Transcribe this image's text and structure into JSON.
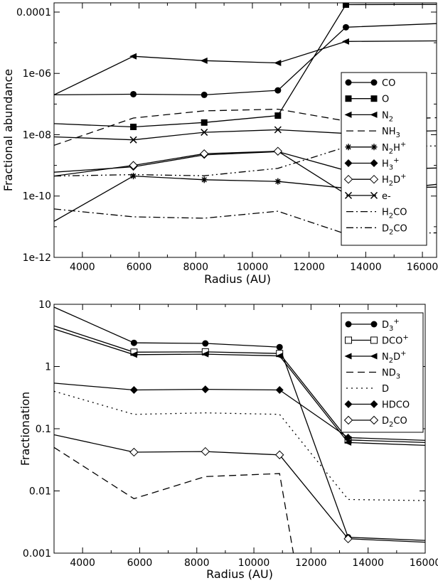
{
  "chart_data": [
    {
      "type": "line",
      "xlabel": "Radius (AU)",
      "ylabel": "Fractional abundance",
      "xlim": [
        3000,
        16500
      ],
      "ylim": [
        1e-12,
        0.0002
      ],
      "yscale": "log",
      "xticks": [
        4000,
        6000,
        8000,
        10000,
        12000,
        14000,
        16000
      ],
      "yticks": [
        {
          "value": 1e-12,
          "label": "1e-12"
        },
        {
          "value": 1e-10,
          "label": "1e-10"
        },
        {
          "value": 1e-08,
          "label": "1e-08"
        },
        {
          "value": 1e-06,
          "label": "1e-06"
        },
        {
          "value": 0.0001,
          "label": "0.0001"
        }
      ],
      "legend": "right",
      "series": [
        {
          "name": "CO",
          "marker": "circle",
          "dash": "",
          "x": [
            3000,
            5800,
            8300,
            10900,
            13300,
            16500
          ],
          "y": [
            2e-07,
            2.1e-07,
            2e-07,
            2.8e-07,
            3.2e-05,
            4.2e-05
          ]
        },
        {
          "name": "O",
          "marker": "square",
          "dash": "",
          "x": [
            3000,
            5800,
            8300,
            10900,
            13300,
            16500
          ],
          "y": [
            2.3e-08,
            1.8e-08,
            2.5e-08,
            4.2e-08,
            0.000175,
            0.000178
          ]
        },
        {
          "name": "N2",
          "marker": "triangle-left",
          "dash": "",
          "x": [
            3000,
            5800,
            8300,
            10900,
            13300,
            16500
          ],
          "y": [
            2e-07,
            3.6e-06,
            2.6e-06,
            2.2e-06,
            1.1e-05,
            1.15e-05
          ]
        },
        {
          "name": "NH3",
          "marker": "none",
          "dash": "10,6",
          "x": [
            3000,
            5800,
            8300,
            10900,
            13300,
            16500
          ],
          "y": [
            4.5e-09,
            3.5e-08,
            6e-08,
            6.8e-08,
            2.8e-08,
            3.6e-08
          ]
        },
        {
          "name": "N2H+",
          "marker": "star",
          "dash": "",
          "x": [
            3000,
            5800,
            8300,
            10900,
            13300,
            16500
          ],
          "y": [
            1.5e-11,
            4.5e-10,
            3.4e-10,
            3e-10,
            1.8e-10,
            1.95e-10
          ]
        },
        {
          "name": "H3+",
          "marker": "diamond",
          "dash": "",
          "x": [
            3000,
            5800,
            8300,
            10900,
            13300,
            16500
          ],
          "y": [
            6e-10,
            9e-10,
            2.2e-09,
            2.8e-09,
            6.8e-10,
            8.2e-10
          ]
        },
        {
          "name": "H2D+",
          "marker": "diamond-open",
          "dash": "",
          "x": [
            3000,
            5800,
            8300,
            10900,
            13300,
            16500
          ],
          "y": [
            4.5e-10,
            1e-09,
            2.4e-09,
            2.9e-09,
            1.15e-10,
            2.4e-10
          ]
        },
        {
          "name": "e-",
          "marker": "x",
          "dash": "",
          "x": [
            3000,
            5800,
            8300,
            10900,
            13300,
            16500
          ],
          "y": [
            8.5e-09,
            6.8e-09,
            1.2e-08,
            1.45e-08,
            1.1e-08,
            1.35e-08
          ]
        },
        {
          "name": "H2CO",
          "marker": "none",
          "dash": "10,4,2,4",
          "x": [
            3000,
            5800,
            8300,
            10900,
            13300,
            16500
          ],
          "y": [
            3.8e-11,
            2.1e-11,
            1.9e-11,
            3.2e-11,
            5.8e-12,
            6.3e-12
          ]
        },
        {
          "name": "D2CO",
          "marker": "none",
          "dash": "10,4,2,4,2,4",
          "x": [
            3000,
            5800,
            8300,
            10900,
            13300,
            16500
          ],
          "y": [
            4.5e-10,
            5e-10,
            4.6e-10,
            8e-10,
            4e-09,
            4.3e-09
          ]
        }
      ]
    },
    {
      "type": "line",
      "xlabel": "Radius (AU)",
      "ylabel": "Fractionation",
      "xlim": [
        3000,
        16000
      ],
      "ylim": [
        0.001,
        10
      ],
      "yscale": "log",
      "xticks": [
        4000,
        6000,
        8000,
        10000,
        12000,
        14000,
        16000
      ],
      "yticks": [
        {
          "value": 0.001,
          "label": "0.001"
        },
        {
          "value": 0.01,
          "label": "0.01"
        },
        {
          "value": 0.1,
          "label": "0.1"
        },
        {
          "value": 1,
          "label": "1"
        },
        {
          "value": 10,
          "label": "10"
        }
      ],
      "legend": "top-right",
      "series": [
        {
          "name": "D3+",
          "marker": "circle",
          "dash": "",
          "x": [
            3000,
            5800,
            8300,
            10900,
            13300,
            16000
          ],
          "y": [
            9,
            2.4,
            2.35,
            2.05,
            0.0018,
            0.0016
          ]
        },
        {
          "name": "DCO+",
          "marker": "square-open",
          "dash": "",
          "x": [
            3000,
            5800,
            8300,
            10900,
            13300,
            16000
          ],
          "y": [
            4.5,
            1.7,
            1.72,
            1.62,
            0.066,
            0.06
          ]
        },
        {
          "name": "N2D+",
          "marker": "triangle-left",
          "dash": "",
          "x": [
            3000,
            5800,
            8300,
            10900,
            13300,
            16000
          ],
          "y": [
            4.0,
            1.55,
            1.58,
            1.48,
            0.06,
            0.054
          ]
        },
        {
          "name": "ND3",
          "marker": "none",
          "dash": "10,6",
          "x": [
            3000,
            5800,
            8300,
            10900,
            11400
          ],
          "y": [
            0.05,
            0.0075,
            0.017,
            0.019,
            0.0009
          ]
        },
        {
          "name": "D",
          "marker": "none",
          "dash": "2,5",
          "x": [
            3000,
            5800,
            8300,
            10900,
            13300,
            16000
          ],
          "y": [
            0.4,
            0.17,
            0.18,
            0.17,
            0.0073,
            0.007
          ]
        },
        {
          "name": "HDCO",
          "marker": "diamond",
          "dash": "",
          "x": [
            3000,
            5800,
            8300,
            10900,
            13300,
            16000
          ],
          "y": [
            0.54,
            0.42,
            0.43,
            0.42,
            0.072,
            0.065
          ]
        },
        {
          "name": "D2CO",
          "marker": "diamond-open",
          "dash": "",
          "x": [
            3000,
            5800,
            8300,
            10900,
            13300,
            16000
          ],
          "y": [
            0.08,
            0.042,
            0.043,
            0.038,
            0.0017,
            0.0015
          ]
        }
      ]
    }
  ],
  "legend_labels": {
    "top": [
      {
        "base": "CO",
        "sub": "",
        "sup": ""
      },
      {
        "base": "O",
        "sub": "",
        "sup": ""
      },
      {
        "base": "N",
        "sub": "2",
        "sup": ""
      },
      {
        "base": "NH",
        "sub": "3",
        "sup": ""
      },
      {
        "base": "N",
        "sub": "2",
        "post": "H",
        "sup": "+"
      },
      {
        "base": "H",
        "sub": "3",
        "sup": "+"
      },
      {
        "base": "H",
        "sub": "2",
        "post": "D",
        "sup": "+"
      },
      {
        "base": "e-",
        "sub": "",
        "sup": ""
      },
      {
        "base": "H",
        "sub": "2",
        "post": "CO",
        "sup": ""
      },
      {
        "base": "D",
        "sub": "2",
        "post": "CO",
        "sup": ""
      }
    ],
    "bottom": [
      {
        "base": "D",
        "sub": "3",
        "sup": "+"
      },
      {
        "base": "DCO",
        "sub": "",
        "sup": "+"
      },
      {
        "base": "N",
        "sub": "2",
        "post": "D",
        "sup": "+"
      },
      {
        "base": "ND",
        "sub": "3",
        "sup": ""
      },
      {
        "base": "D",
        "sub": "",
        "sup": ""
      },
      {
        "base": "HDCO",
        "sub": "",
        "sup": ""
      },
      {
        "base": "D",
        "sub": "2",
        "post": "CO",
        "sup": ""
      }
    ]
  }
}
